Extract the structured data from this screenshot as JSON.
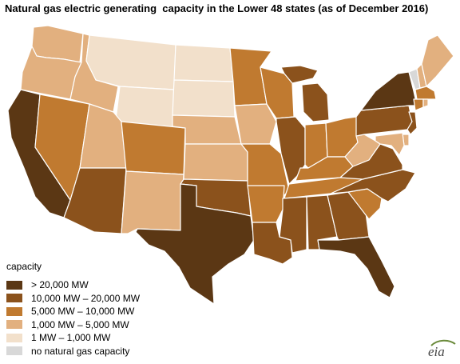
{
  "title": "Natural gas electric generating  capacity in the Lower 48 states (as of December 2016)",
  "legend": {
    "title": "capacity",
    "items": [
      {
        "label": "> 20,000 MW",
        "color": "#5b3714"
      },
      {
        "label": "10,000 MW – 20,000 MW",
        "color": "#8b521c"
      },
      {
        "label": "5,000 MW – 10,000 MW",
        "color": "#c07a30"
      },
      {
        "label": "1,000 MW – 5,000 MW",
        "color": "#e2b07f"
      },
      {
        "label": "1 MW – 1,000 MW",
        "color": "#f2e0cb"
      },
      {
        "label": "no natural gas capacity",
        "color": "#d8d8d8"
      }
    ]
  },
  "logo": {
    "text": "eia"
  },
  "map_data": {
    "categories": [
      "> 20,000 MW",
      "10,000 MW – 20,000 MW",
      "5,000 MW – 10,000 MW",
      "1,000 MW – 5,000 MW",
      "1 MW – 1,000 MW",
      "no natural gas capacity"
    ],
    "states": {
      "WA": 3,
      "OR": 3,
      "CA": 0,
      "NV": 2,
      "ID": 3,
      "MT": 4,
      "WY": 4,
      "UT": 3,
      "AZ": 1,
      "CO": 2,
      "NM": 3,
      "ND": 4,
      "SD": 4,
      "NE": 3,
      "KS": 3,
      "OK": 1,
      "TX": 0,
      "MN": 2,
      "IA": 3,
      "MO": 2,
      "AR": 2,
      "LA": 1,
      "WI": 2,
      "IL": 1,
      "MI": 1,
      "IN": 2,
      "OH": 2,
      "KY": 2,
      "TN": 2,
      "MS": 1,
      "AL": 1,
      "GA": 1,
      "FL": 0,
      "SC": 2,
      "NC": 1,
      "VA": 1,
      "WV": 3,
      "PA": 1,
      "NY": 0,
      "VT": 5,
      "NH": 3,
      "ME": 3,
      "MA": 2,
      "RI": 3,
      "CT": 2,
      "NJ": 1,
      "DE": 3,
      "MD": 3
    }
  }
}
